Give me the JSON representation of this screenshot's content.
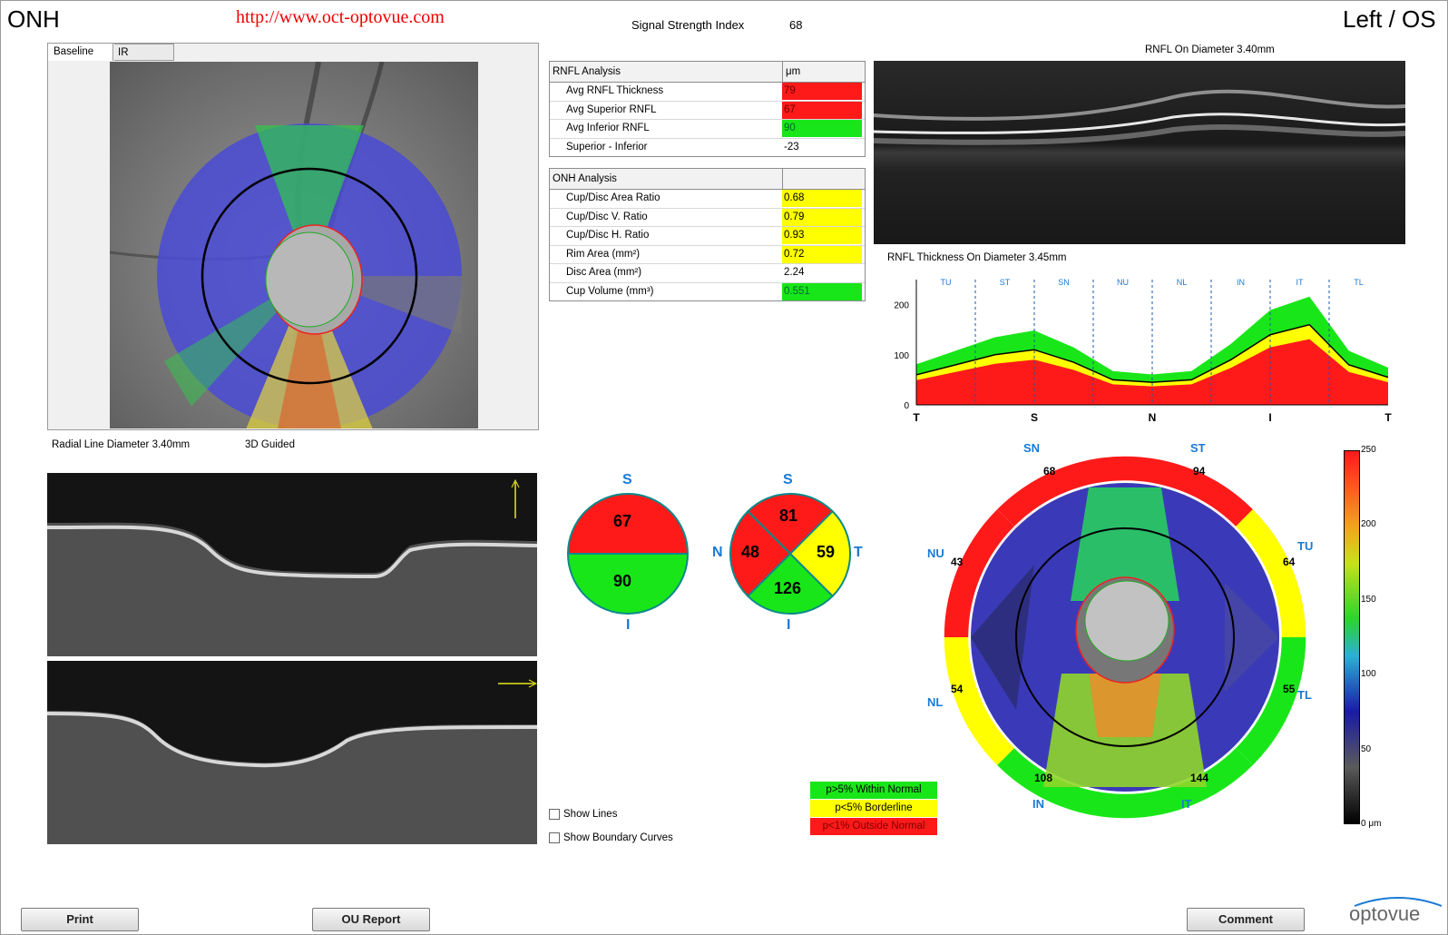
{
  "header": {
    "title": "ONH",
    "url": "http://www.oct-optovue.com",
    "signal_label": "Signal Strength Index",
    "signal_value": "68",
    "eye": "Left / OS"
  },
  "image_tabs": [
    "Baseline",
    "IR"
  ],
  "fundus": {
    "radial_line_label": "Radial Line Diameter 3.40mm",
    "guided_label": "3D Guided"
  },
  "rnfl_analysis": {
    "title": "RNFL Analysis",
    "unit": "μm",
    "rows": [
      {
        "label": "Avg RNFL Thickness",
        "value": "79",
        "status": "red"
      },
      {
        "label": "Avg Superior RNFL",
        "value": "67",
        "status": "red"
      },
      {
        "label": "Avg Inferior RNFL",
        "value": "90",
        "status": "green"
      },
      {
        "label": "Superior - Inferior",
        "value": "-23",
        "status": "none"
      }
    ]
  },
  "onh_analysis": {
    "title": "ONH Analysis",
    "rows": [
      {
        "label": "Cup/Disc Area Ratio",
        "value": "0.68",
        "status": "yellow"
      },
      {
        "label": "Cup/Disc V. Ratio",
        "value": "0.79",
        "status": "yellow"
      },
      {
        "label": "Cup/Disc H. Ratio",
        "value": "0.93",
        "status": "yellow"
      },
      {
        "label": "Rim Area (mm²)",
        "value": "0.72",
        "status": "yellow"
      },
      {
        "label": "Disc Area (mm²)",
        "value": "2.24",
        "status": "none"
      },
      {
        "label": "Cup Volume (mm³)",
        "value": "0.551",
        "status": "green"
      }
    ]
  },
  "oct_scan_title": "RNFL On Diameter 3.40mm",
  "tsnit": {
    "title": "RNFL Thickness On Diameter 3.45mm",
    "sector_labels": [
      "TU",
      "ST",
      "SN",
      "NU",
      "NL",
      "IN",
      "IT",
      "TL"
    ],
    "x_labels": [
      "T",
      "S",
      "N",
      "I",
      "T"
    ],
    "y_ticks": [
      "0",
      "100",
      "200"
    ]
  },
  "chart_data": {
    "type": "line",
    "title": "RNFL Thickness On Diameter 3.45mm",
    "xlabel": "",
    "ylabel": "",
    "x": [
      "T",
      "TU",
      "ST",
      "S",
      "SN",
      "NU",
      "N",
      "NL",
      "IN",
      "I",
      "IT",
      "TL",
      "T"
    ],
    "ylim": [
      0,
      250
    ],
    "series": [
      {
        "name": "",
        "values": [
          60,
          80,
          100,
          110,
          85,
          50,
          45,
          50,
          90,
          140,
          160,
          80,
          55
        ]
      }
    ],
    "grid": false
  },
  "quadrant_chart": {
    "S": "S",
    "I": "I",
    "superior": "67",
    "inferior": "90"
  },
  "sector_chart": {
    "S": "S",
    "I": "I",
    "N": "N",
    "T": "T",
    "superior": "81",
    "nasal": "48",
    "temporal": "59",
    "inferior": "126"
  },
  "thickness_map": {
    "labels": {
      "SN": "SN",
      "ST": "ST",
      "NU": "NU",
      "TU": "TU",
      "NL": "NL",
      "TL": "TL",
      "IN": "IN",
      "IT": "IT"
    },
    "values": {
      "SN": "68",
      "ST": "94",
      "NU": "43",
      "TU": "64",
      "NL": "54",
      "TL": "55",
      "IN": "108",
      "IT": "144"
    },
    "scale": [
      "250",
      "200",
      "150",
      "100",
      "50",
      "0 μm"
    ]
  },
  "legend": [
    {
      "label": "p>5% Within Normal",
      "color": "#19e619"
    },
    {
      "label": "p<5% Borderline",
      "color": "#ffff00"
    },
    {
      "label": "p<1% Outside Normal",
      "color": "#ff1a1a"
    }
  ],
  "checkboxes": {
    "show_lines": "Show Lines",
    "show_boundary": "Show Boundary Curves"
  },
  "buttons": {
    "print": "Print",
    "ou_report": "OU Report",
    "comment": "Comment"
  },
  "brand": "optovue"
}
